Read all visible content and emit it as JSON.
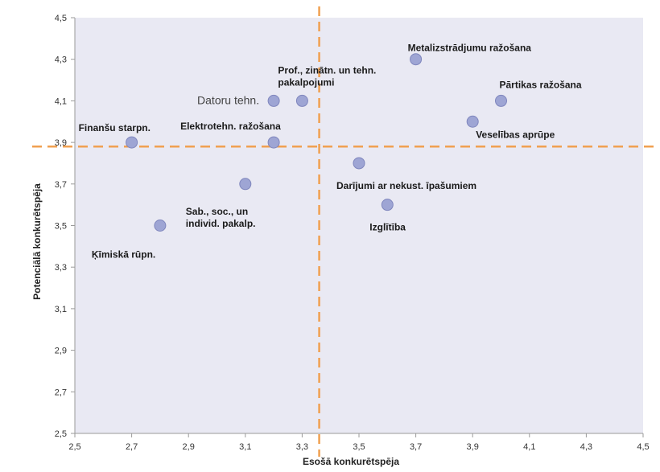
{
  "chart_data": {
    "type": "scatter",
    "title": "",
    "xlabel": "Esošā konkurētspēja",
    "ylabel": "Potenciālā konkurētspēja",
    "xlim": [
      2.5,
      4.5
    ],
    "ylim": [
      2.5,
      4.5
    ],
    "x_ticks": [
      "2,5",
      "2,7",
      "2,9",
      "3,1",
      "3,3",
      "3,5",
      "3,7",
      "3,9",
      "4,1",
      "4,3",
      "4,5"
    ],
    "y_ticks": [
      "2,5",
      "2,7",
      "2,9",
      "3,1",
      "3,3",
      "3,5",
      "3,7",
      "3,9",
      "4,1",
      "4,3",
      "4,5"
    ],
    "grid": false,
    "reference_lines": {
      "x": 3.36,
      "y": 3.88
    },
    "points": [
      {
        "label": [
          "Metalizstrādjumu ražošana"
        ],
        "x": 3.7,
        "y": 4.3
      },
      {
        "label": [
          "Prof., zinātn. un tehn.",
          "pakalpojumi"
        ],
        "x": 3.3,
        "y": 4.1
      },
      {
        "label": [
          "Datoru tehn."
        ],
        "x": 3.2,
        "y": 4.1,
        "style": "light"
      },
      {
        "label": [
          "Pārtikas ražošana"
        ],
        "x": 4.0,
        "y": 4.1
      },
      {
        "label": [
          "Veselības aprūpe"
        ],
        "x": 3.9,
        "y": 4.0
      },
      {
        "label": [
          "Finanšu starpn."
        ],
        "x": 2.7,
        "y": 3.9
      },
      {
        "label": [
          "Elektrotehn. ražošana"
        ],
        "x": 3.2,
        "y": 3.9
      },
      {
        "label": [],
        "x": 3.1,
        "y": 3.7
      },
      {
        "label": [
          "Sab., soc., un",
          "individ. pakalp."
        ],
        "x": 3.1,
        "y": 3.7,
        "label_only": true
      },
      {
        "label": [
          "Darījumi ar nekust. īpašumiem"
        ],
        "x": 3.5,
        "y": 3.8
      },
      {
        "label": [
          "Izglītība"
        ],
        "x": 3.6,
        "y": 3.6
      },
      {
        "label": [
          "Ķīmiskā rūpn."
        ],
        "x": 2.8,
        "y": 3.5
      }
    ],
    "colors": {
      "plot_background": "#e9e9f3",
      "marker_fill": "#9ea5d4",
      "marker_stroke": "#7f86bd",
      "reference_line": "#f0a050"
    }
  }
}
